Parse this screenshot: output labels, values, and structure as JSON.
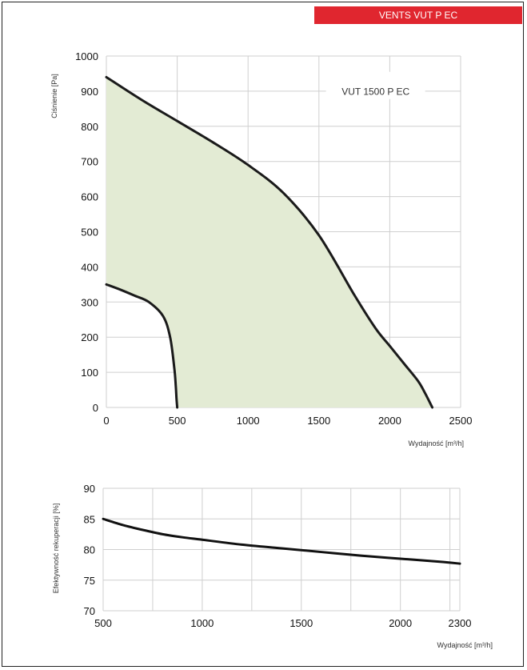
{
  "header": {
    "title": "VENTS VUT P EC",
    "color": "#e0262f"
  },
  "chart_data": [
    {
      "type": "area",
      "title": "",
      "xlabel": "Wydajność [m³/h]",
      "ylabel": "Ciśnienie [Pa]",
      "xlim": [
        0,
        2500
      ],
      "ylim": [
        0,
        1000
      ],
      "xticks": [
        0,
        500,
        1000,
        1500,
        2000,
        2500
      ],
      "yticks": [
        0,
        100,
        200,
        300,
        400,
        500,
        600,
        700,
        800,
        900,
        1000
      ],
      "grid": true,
      "legend": "top-right",
      "fill_color": "#e3ebd4",
      "series": [
        {
          "name": "VUT 1500 P EC",
          "x": [
            0,
            250,
            500,
            750,
            1000,
            1250,
            1500,
            1750,
            1900,
            2000,
            2100,
            2200,
            2250,
            2300
          ],
          "y": [
            940,
            875,
            815,
            755,
            690,
            610,
            490,
            320,
            225,
            175,
            125,
            75,
            40,
            0
          ]
        },
        {
          "name": "",
          "x": [
            0,
            100,
            200,
            300,
            400,
            450,
            480,
            490,
            495,
            500
          ],
          "y": [
            350,
            335,
            318,
            300,
            260,
            200,
            110,
            60,
            25,
            0
          ]
        }
      ]
    },
    {
      "type": "line",
      "title": "",
      "xlabel": "Wydajność [m³/h]",
      "ylabel": "Efektywność rekuperacji [%]",
      "xlim": [
        500,
        2300
      ],
      "ylim": [
        70,
        90
      ],
      "xticks": [
        500,
        1000,
        1500,
        2000,
        2300
      ],
      "yticks": [
        70,
        75,
        80,
        85,
        90
      ],
      "grid": true,
      "series": [
        {
          "name": "",
          "x": [
            500,
            600,
            700,
            800,
            900,
            1000,
            1200,
            1400,
            1600,
            1800,
            2000,
            2200,
            2300
          ],
          "y": [
            85.0,
            84.0,
            83.2,
            82.5,
            82.0,
            81.6,
            80.8,
            80.2,
            79.6,
            79.0,
            78.5,
            78.0,
            77.7
          ]
        }
      ]
    }
  ]
}
